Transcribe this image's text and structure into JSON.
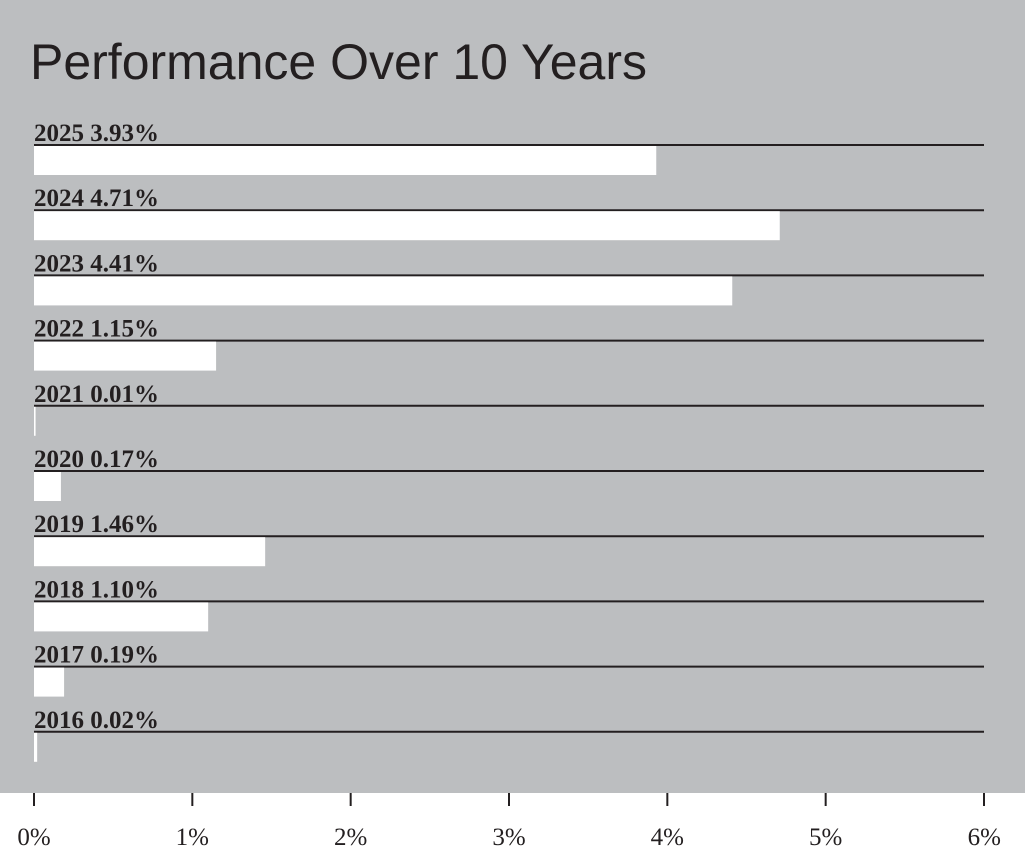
{
  "colors": {
    "panel_background": "#bcbec0",
    "bar_fill": "#ffffff",
    "rule_line": "#231f20",
    "text": "#231f20",
    "page_background": "#ffffff"
  },
  "chart_data": {
    "type": "bar",
    "orientation": "horizontal",
    "title": "Performance Over 10 Years",
    "xlabel": "",
    "ylabel": "",
    "xlim": [
      0,
      6
    ],
    "grid": false,
    "legend": "none",
    "categories": [
      "2025",
      "2024",
      "2023",
      "2022",
      "2021",
      "2020",
      "2019",
      "2018",
      "2017",
      "2016"
    ],
    "values": [
      3.93,
      4.71,
      4.41,
      1.15,
      0.01,
      0.17,
      1.46,
      1.1,
      0.19,
      0.02
    ],
    "value_labels": [
      "3.93%",
      "4.71%",
      "4.41%",
      "1.15%",
      "0.01%",
      "0.17%",
      "1.46%",
      "1.10%",
      "0.19%",
      "0.02%"
    ],
    "x_ticks": [
      0,
      1,
      2,
      3,
      4,
      5,
      6
    ],
    "x_tick_labels": [
      "0%",
      "1%",
      "2%",
      "3%",
      "4%",
      "5%",
      "6%"
    ]
  }
}
